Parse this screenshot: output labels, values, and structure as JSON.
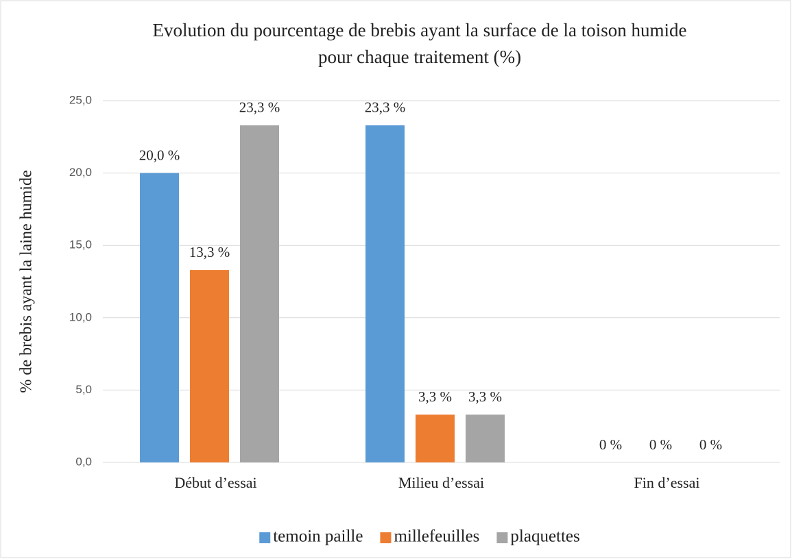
{
  "chart_data": {
    "type": "bar",
    "title": [
      "Evolution du pourcentage de brebis ayant la surface de la toison humide",
      "pour chaque traitement (%)"
    ],
    "y_label": "% de brebis ayant la laine humide",
    "categories": [
      "Début d’essai",
      "Milieu d’essai",
      "Fin d’essai"
    ],
    "series": [
      {
        "name": "temoin paille",
        "color": "#5b9bd5",
        "values": [
          20.0,
          23.3,
          0
        ],
        "value_labels": [
          "20,0 %",
          "23,3 %",
          "0 %"
        ]
      },
      {
        "name": "millefeuilles",
        "color": "#ed7d31",
        "values": [
          13.3,
          3.3,
          0
        ],
        "value_labels": [
          "13,3 %",
          "3,3 %",
          "0 %"
        ]
      },
      {
        "name": "plaquettes",
        "color": "#a5a5a5",
        "values": [
          23.3,
          3.3,
          0
        ],
        "value_labels": [
          "23,3 %",
          "3,3 %",
          "0 %"
        ]
      }
    ],
    "ylim": [
      0,
      25
    ],
    "yticks": [
      {
        "value": 0,
        "label": "0,0"
      },
      {
        "value": 5,
        "label": "5,0"
      },
      {
        "value": 10,
        "label": "10,0"
      },
      {
        "value": 15,
        "label": "15,0"
      },
      {
        "value": 20,
        "label": "20,0"
      },
      {
        "value": 25,
        "label": "25,0"
      }
    ],
    "grid": true,
    "legend": "bottom"
  }
}
